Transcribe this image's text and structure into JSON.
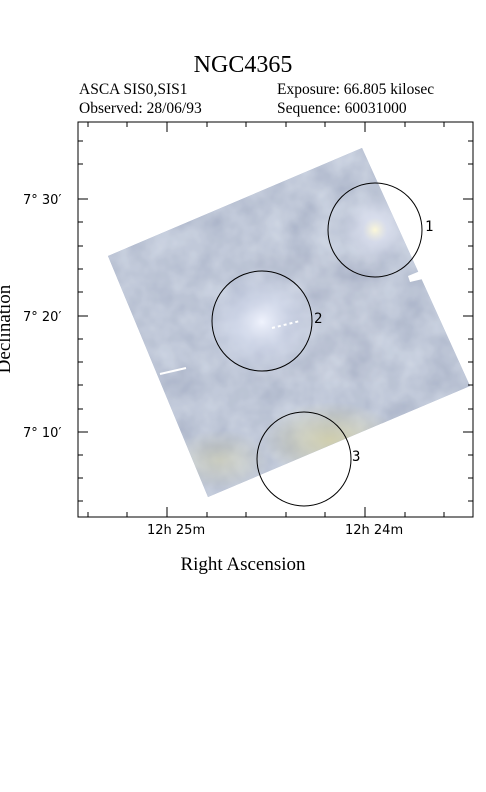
{
  "header": {
    "object_name": "NGC4365",
    "instrument": "ASCA SIS0,SIS1",
    "exposure": "Exposure: 66.805 kilosec",
    "observed": "Observed: 28/06/93",
    "sequence": "Sequence: 60031000"
  },
  "axes": {
    "x_label": "Right Ascension",
    "y_label": "Declination",
    "dec_ticks": [
      {
        "label": "7° 30′",
        "value": 30
      },
      {
        "label": "7° 20′",
        "value": 20
      },
      {
        "label": "7° 10′",
        "value": 10
      }
    ],
    "ra_ticks": [
      {
        "label": "12h 25m"
      },
      {
        "label": "12h 24m"
      }
    ]
  },
  "sources": [
    {
      "label": "1"
    },
    {
      "label": "2"
    },
    {
      "label": "3"
    }
  ],
  "colors": {
    "image_base": "#8f9fbf",
    "image_light": "#c8d2e6",
    "image_warm": "#c9c7a2"
  }
}
